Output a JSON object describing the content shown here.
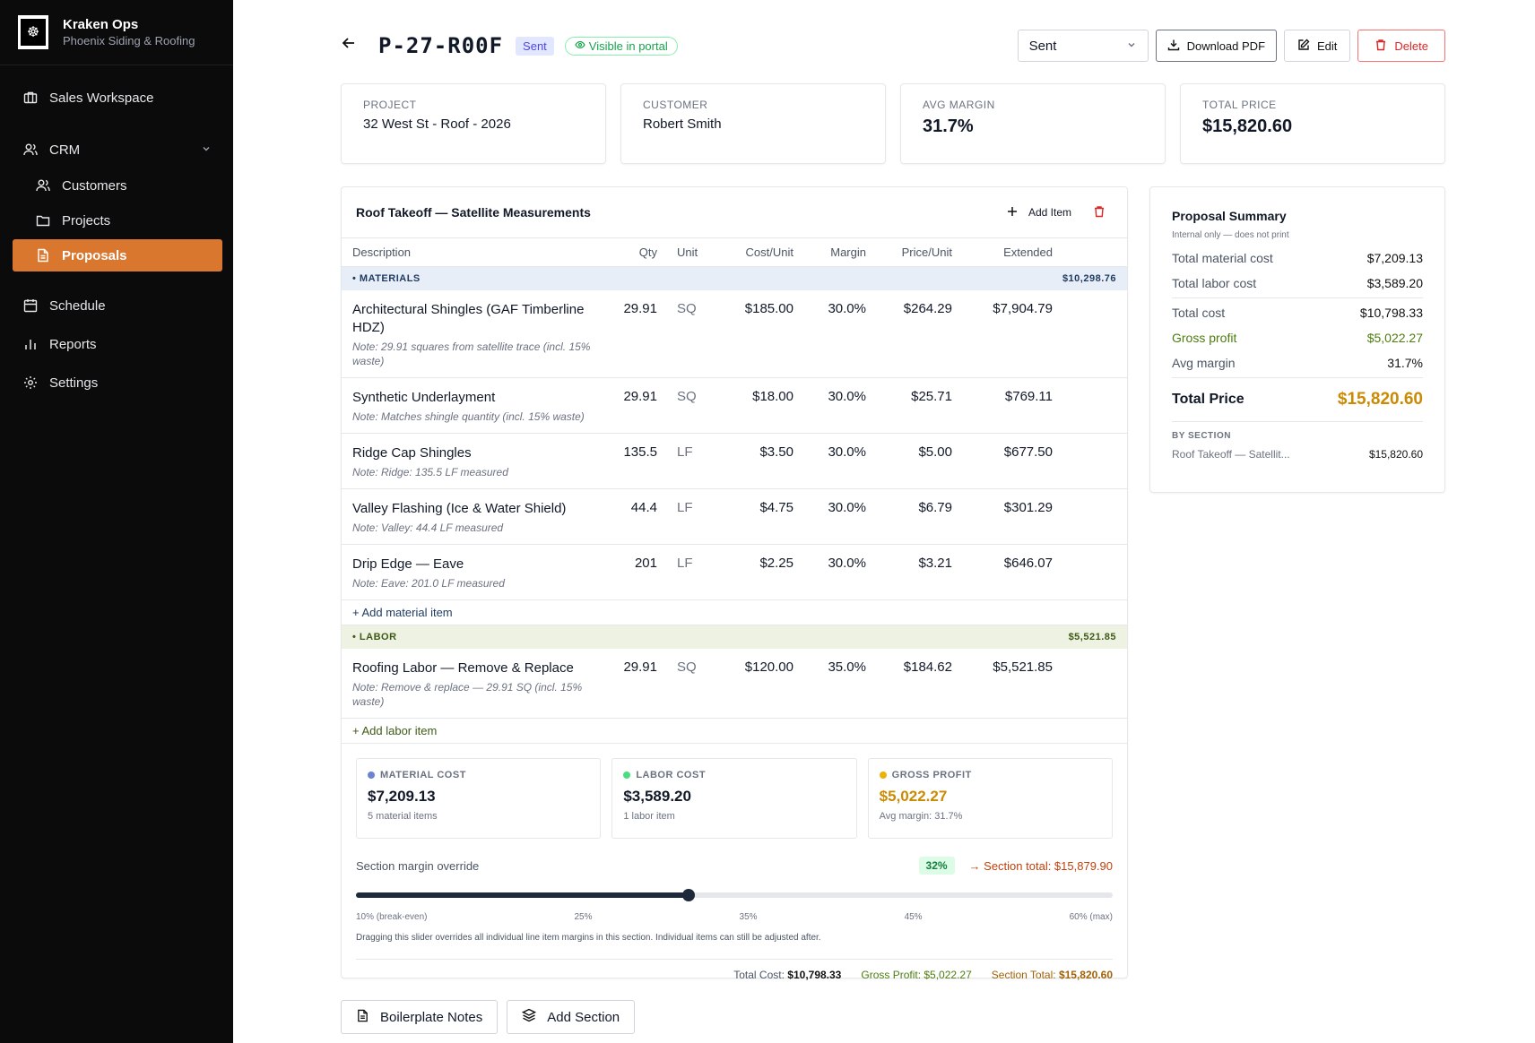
{
  "brand": {
    "title": "Kraken Ops",
    "subtitle": "Phoenix Siding & Roofing"
  },
  "nav": {
    "sales": "Sales Workspace",
    "crm": "CRM",
    "customers": "Customers",
    "projects": "Projects",
    "proposals": "Proposals",
    "schedule": "Schedule",
    "reports": "Reports",
    "settings": "Settings"
  },
  "header": {
    "title": "P-27-R00F",
    "status_badge": "Sent",
    "portal_badge": "Visible in portal",
    "status_select": "Sent",
    "download": "Download PDF",
    "edit": "Edit",
    "delete": "Delete"
  },
  "kpis": [
    {
      "label": "Project",
      "value": "32 West St - Roof - 2026"
    },
    {
      "label": "Customer",
      "value": "Robert Smith"
    },
    {
      "label": "Avg Margin",
      "value": "31.7%"
    },
    {
      "label": "Total Price",
      "value": "$15,820.60"
    }
  ],
  "section": {
    "title": "Roof Takeoff — Satellite Measurements",
    "add_item": "Add Item",
    "columns": {
      "desc": "Description",
      "qty": "Qty",
      "unit": "Unit",
      "cost": "Cost/Unit",
      "margin": "Margin",
      "price": "Price/Unit",
      "ext": "Extended"
    },
    "materials": {
      "label": "• MATERIALS",
      "total": "$10,298.76",
      "add": "+ Add material item",
      "items": [
        {
          "name": "Architectural Shingles (GAF Timberline HDZ)",
          "note": "Note: 29.91 squares from satellite trace (incl. 15% waste)",
          "qty": "29.91",
          "unit": "SQ",
          "cost": "$185.00",
          "margin": "30.0%",
          "price": "$264.29",
          "ext": "$7,904.79"
        },
        {
          "name": "Synthetic Underlayment",
          "note": "Note: Matches shingle quantity (incl. 15% waste)",
          "qty": "29.91",
          "unit": "SQ",
          "cost": "$18.00",
          "margin": "30.0%",
          "price": "$25.71",
          "ext": "$769.11"
        },
        {
          "name": "Ridge Cap Shingles",
          "note": "Note: Ridge: 135.5 LF measured",
          "qty": "135.5",
          "unit": "LF",
          "cost": "$3.50",
          "margin": "30.0%",
          "price": "$5.00",
          "ext": "$677.50"
        },
        {
          "name": "Valley Flashing (Ice & Water Shield)",
          "note": "Note: Valley: 44.4 LF measured",
          "qty": "44.4",
          "unit": "LF",
          "cost": "$4.75",
          "margin": "30.0%",
          "price": "$6.79",
          "ext": "$301.29"
        },
        {
          "name": "Drip Edge — Eave",
          "note": "Note: Eave: 201.0 LF measured",
          "qty": "201",
          "unit": "LF",
          "cost": "$2.25",
          "margin": "30.0%",
          "price": "$3.21",
          "ext": "$646.07"
        }
      ]
    },
    "labor": {
      "label": "• LABOR",
      "total": "$5,521.85",
      "add": "+ Add labor item",
      "items": [
        {
          "name": "Roofing Labor — Remove & Replace",
          "note": "Note: Remove & replace — 29.91 SQ (incl. 15% waste)",
          "qty": "29.91",
          "unit": "SQ",
          "cost": "$120.00",
          "margin": "35.0%",
          "price": "$184.62",
          "ext": "$5,521.85"
        }
      ]
    },
    "cards": [
      {
        "label": "MATERIAL COST",
        "value": "$7,209.13",
        "sub": "5 material items",
        "color": "#6b82d6"
      },
      {
        "label": "LABOR COST",
        "value": "$3,589.20",
        "sub": "1 labor item",
        "color": "#4ade80"
      },
      {
        "label": "GROSS PROFIT",
        "value": "$5,022.27",
        "sub": "Avg margin: 31.7%",
        "color": "#eab308"
      }
    ],
    "override": {
      "label": "Section margin override",
      "pct": "32%",
      "value": 32,
      "min": 10,
      "max": 60,
      "section_total": "→ Section total: $15,879.90",
      "ticks": [
        "10% (break-even)",
        "25%",
        "35%",
        "45%",
        "60% (max)"
      ],
      "hint": "Dragging this slider overrides all individual line item margins in this section. Individual items can still be adjusted after."
    },
    "footer": {
      "total_cost_label": "Total Cost:",
      "total_cost": "$10,798.33",
      "gross_profit": "Gross Profit: $5,022.27",
      "section_total_label": "Section Total:",
      "section_total": "$15,820.60"
    }
  },
  "summary": {
    "title": "Proposal Summary",
    "sub": "Internal only — does not print",
    "rows": [
      {
        "label": "Total material cost",
        "value": "$7,209.13"
      },
      {
        "label": "Total labor cost",
        "value": "$3,589.20"
      },
      {
        "label": "Total cost",
        "value": "$10,798.33"
      },
      {
        "label": "Gross profit",
        "value": "$5,022.27"
      },
      {
        "label": "Avg margin",
        "value": "31.7%"
      }
    ],
    "total_label": "Total Price",
    "total_value": "$15,820.60",
    "by_section_label": "BY SECTION",
    "by_section": [
      {
        "name": "Roof Takeoff — Satellit...",
        "value": "$15,820.60"
      }
    ]
  },
  "bottom": {
    "notes": "Boilerplate Notes",
    "add_section": "Add Section"
  }
}
